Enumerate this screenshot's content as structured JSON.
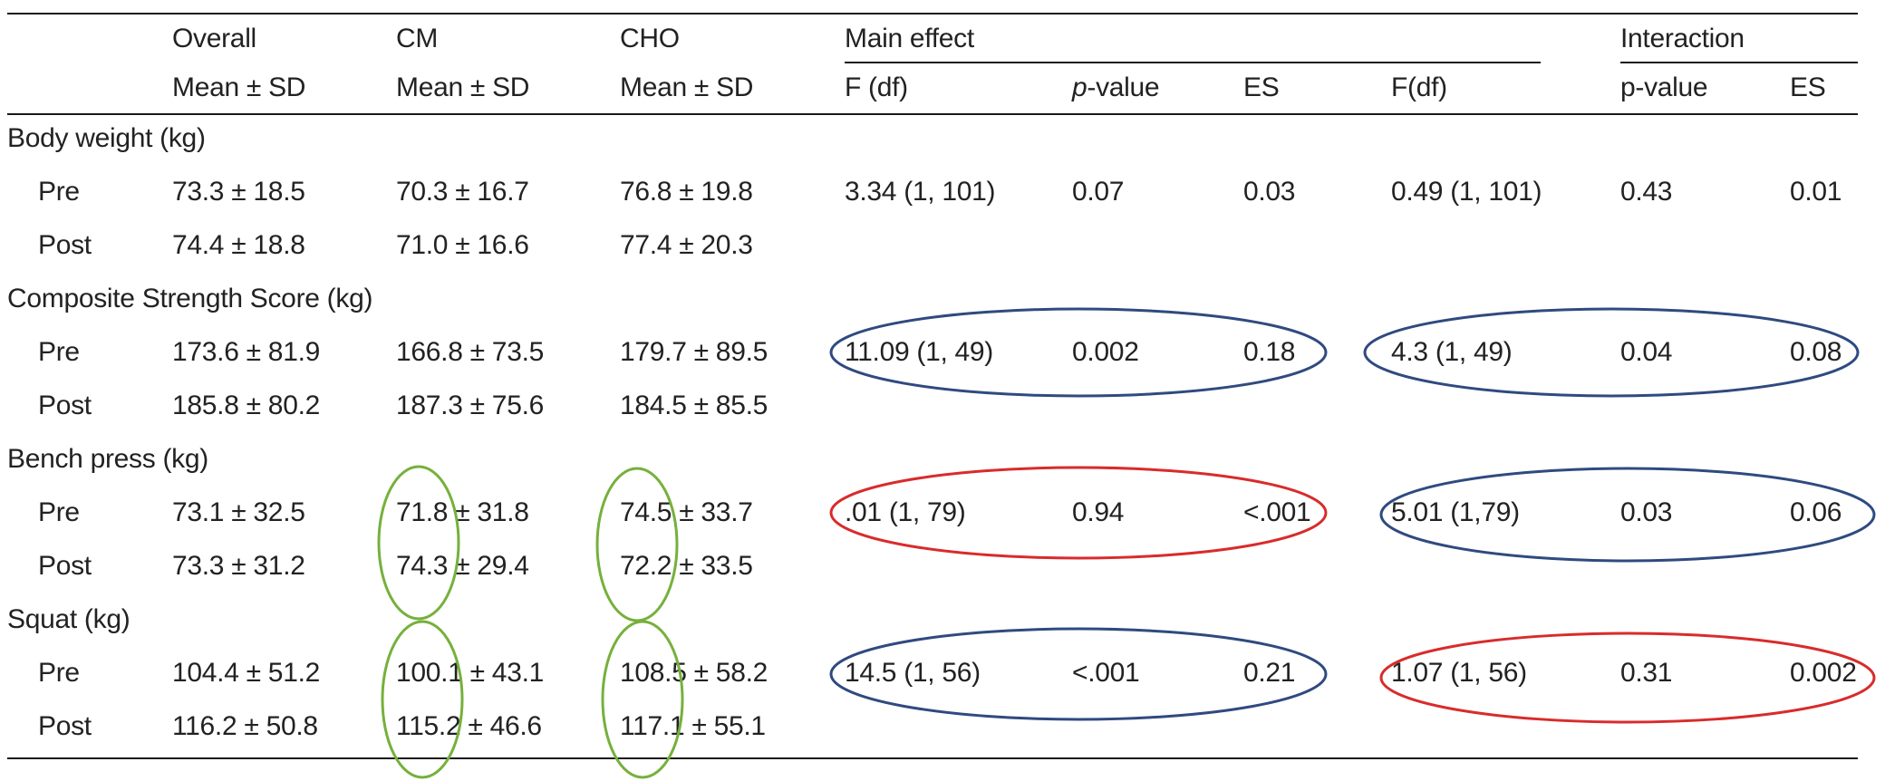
{
  "header": {
    "overall": "Overall",
    "cm": "CM",
    "cho": "CHO",
    "main_effect": "Main effect",
    "interaction": "Interaction",
    "mean_sd": "Mean ± SD",
    "f_df_main": "F (df)",
    "p_value_main_prefix": "p",
    "p_value_main_suffix": "-value",
    "es_main": "ES",
    "f_df_interaction": "F(df)",
    "p_value_interaction": "p-value",
    "es_interaction": "ES"
  },
  "sections": [
    {
      "title": "Body weight (kg)",
      "main": {
        "f": "3.34 (1, 101)",
        "p": "0.07",
        "es": "0.03"
      },
      "interaction": {
        "f": "0.49 (1, 101)",
        "p": "0.43",
        "es": "0.01"
      },
      "rows": [
        {
          "label": "Pre",
          "overall": "73.3 ± 18.5",
          "cm": "70.3 ± 16.7",
          "cho": "76.8 ± 19.8"
        },
        {
          "label": "Post",
          "overall": "74.4 ± 18.8",
          "cm": "71.0 ± 16.6",
          "cho": "77.4 ± 20.3"
        }
      ]
    },
    {
      "title": "Composite Strength Score (kg)",
      "main": {
        "f": "11.09 (1, 49)",
        "p": "0.002",
        "es": "0.18"
      },
      "interaction": {
        "f": "4.3 (1, 49)",
        "p": "0.04",
        "es": "0.08"
      },
      "rows": [
        {
          "label": "Pre",
          "overall": "173.6 ± 81.9",
          "cm": "166.8 ± 73.5",
          "cho": "179.7 ± 89.5"
        },
        {
          "label": "Post",
          "overall": "185.8 ± 80.2",
          "cm": "187.3 ± 75.6",
          "cho": "184.5 ± 85.5"
        }
      ]
    },
    {
      "title": "Bench press (kg)",
      "main": {
        "f": ".01 (1, 79)",
        "p": "0.94",
        "es": "<.001"
      },
      "interaction": {
        "f": "5.01 (1,79)",
        "p": "0.03",
        "es": "0.06"
      },
      "rows": [
        {
          "label": "Pre",
          "overall": "73.1 ± 32.5",
          "cm": "71.8 ± 31.8",
          "cho": "74.5 ± 33.7"
        },
        {
          "label": "Post",
          "overall": "73.3 ± 31.2",
          "cm": "74.3 ± 29.4",
          "cho": "72.2 ± 33.5"
        }
      ]
    },
    {
      "title": "Squat (kg)",
      "main": {
        "f": "14.5 (1, 56)",
        "p": "<.001",
        "es": "0.21"
      },
      "interaction": {
        "f": "1.07 (1, 56)",
        "p": "0.31",
        "es": "0.002"
      },
      "rows": [
        {
          "label": "Pre",
          "overall": "104.4 ± 51.2",
          "cm": "100.1 ± 43.1",
          "cho": "108.5 ± 58.2"
        },
        {
          "label": "Post",
          "overall": "116.2 ± 50.8",
          "cm": "115.2 ± 46.6",
          "cho": "117.1 ± 55.1"
        }
      ]
    }
  ],
  "annotation_colors": {
    "blue": "#2f4a80",
    "red": "#d92b2b",
    "green": "#76b03c"
  },
  "annotations": [
    {
      "color": "blue",
      "target": "composite-strength-main-effect"
    },
    {
      "color": "blue",
      "target": "composite-strength-interaction"
    },
    {
      "color": "red",
      "target": "bench-press-main-effect"
    },
    {
      "color": "blue",
      "target": "bench-press-interaction"
    },
    {
      "color": "green",
      "target": "bench-press-cm"
    },
    {
      "color": "green",
      "target": "bench-press-cho"
    },
    {
      "color": "blue",
      "target": "squat-main-effect"
    },
    {
      "color": "red",
      "target": "squat-interaction"
    },
    {
      "color": "green",
      "target": "squat-cm"
    },
    {
      "color": "green",
      "target": "squat-cho"
    }
  ]
}
